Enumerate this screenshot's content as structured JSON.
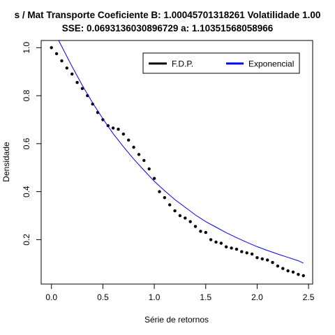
{
  "chart_data": {
    "type": "scatter",
    "title_line1": "s / Mat Transporte Coeficiente B:  1.00045701318261 Volatilidade 1.00",
    "title_line2": "SSE: 0.0693136030896729  a:  1.10351568058966",
    "xlabel": "Série de retornos",
    "ylabel": "Densidade",
    "xlim": [
      -0.1,
      2.54
    ],
    "ylim": [
      0.015,
      1.03
    ],
    "x_ticks": [
      0.0,
      0.5,
      1.0,
      1.5,
      2.0,
      2.5
    ],
    "x_tick_labels": [
      "0.0",
      "0.5",
      "1.0",
      "1.5",
      "2.0",
      "2.5"
    ],
    "y_ticks": [
      0.2,
      0.4,
      0.6,
      0.8,
      1.0
    ],
    "y_tick_labels": [
      "0.2",
      "0.4",
      "0.6",
      "0.8",
      "1.0"
    ],
    "grid": false,
    "legend_position": "top-right",
    "series": [
      {
        "name": "F.D.P.",
        "style": "points",
        "color": "#000000",
        "points": [
          [
            0.0,
            1.0
          ],
          [
            0.05,
            0.975
          ],
          [
            0.1,
            0.945
          ],
          [
            0.15,
            0.915
          ],
          [
            0.2,
            0.89
          ],
          [
            0.25,
            0.855
          ],
          [
            0.3,
            0.83
          ],
          [
            0.35,
            0.8
          ],
          [
            0.4,
            0.765
          ],
          [
            0.45,
            0.73
          ],
          [
            0.5,
            0.7
          ],
          [
            0.55,
            0.675
          ],
          [
            0.6,
            0.665
          ],
          [
            0.65,
            0.66
          ],
          [
            0.7,
            0.64
          ],
          [
            0.75,
            0.615
          ],
          [
            0.8,
            0.585
          ],
          [
            0.85,
            0.555
          ],
          [
            0.9,
            0.53
          ],
          [
            0.95,
            0.495
          ],
          [
            1.0,
            0.455
          ],
          [
            1.05,
            0.4
          ],
          [
            1.1,
            0.375
          ],
          [
            1.15,
            0.345
          ],
          [
            1.2,
            0.32
          ],
          [
            1.25,
            0.3
          ],
          [
            1.3,
            0.29
          ],
          [
            1.35,
            0.275
          ],
          [
            1.4,
            0.255
          ],
          [
            1.45,
            0.235
          ],
          [
            1.5,
            0.23
          ],
          [
            1.55,
            0.2
          ],
          [
            1.6,
            0.19
          ],
          [
            1.65,
            0.185
          ],
          [
            1.7,
            0.17
          ],
          [
            1.75,
            0.165
          ],
          [
            1.8,
            0.16
          ],
          [
            1.85,
            0.15
          ],
          [
            1.9,
            0.145
          ],
          [
            1.95,
            0.14
          ],
          [
            2.0,
            0.125
          ],
          [
            2.05,
            0.12
          ],
          [
            2.1,
            0.115
          ],
          [
            2.15,
            0.105
          ],
          [
            2.2,
            0.09
          ],
          [
            2.25,
            0.08
          ],
          [
            2.3,
            0.07
          ],
          [
            2.35,
            0.065
          ],
          [
            2.4,
            0.055
          ],
          [
            2.45,
            0.05
          ]
        ]
      },
      {
        "name": "Exponencial",
        "style": "line",
        "color": "#0000ff",
        "points": [
          [
            0.07,
            1.03
          ],
          [
            0.1,
            1.005
          ],
          [
            0.2,
            0.922
          ],
          [
            0.3,
            0.843
          ],
          [
            0.4,
            0.77
          ],
          [
            0.5,
            0.704
          ],
          [
            0.6,
            0.642
          ],
          [
            0.7,
            0.587
          ],
          [
            0.8,
            0.536
          ],
          [
            0.9,
            0.489
          ],
          [
            1.0,
            0.443
          ],
          [
            1.1,
            0.404
          ],
          [
            1.2,
            0.367
          ],
          [
            1.3,
            0.335
          ],
          [
            1.4,
            0.303
          ],
          [
            1.5,
            0.275
          ],
          [
            1.6,
            0.252
          ],
          [
            1.7,
            0.229
          ],
          [
            1.8,
            0.208
          ],
          [
            1.9,
            0.189
          ],
          [
            2.0,
            0.171
          ],
          [
            2.1,
            0.155
          ],
          [
            2.2,
            0.14
          ],
          [
            2.3,
            0.126
          ],
          [
            2.4,
            0.112
          ],
          [
            2.45,
            0.102
          ]
        ]
      }
    ]
  }
}
